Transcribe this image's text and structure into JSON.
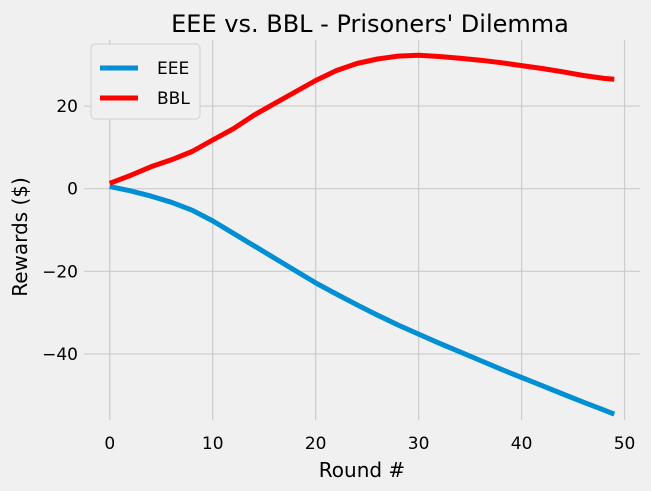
{
  "chart_data": {
    "type": "line",
    "title": "EEE vs. BBL - Prisoners' Dilemma",
    "xlabel": "Round #",
    "ylabel": "Rewards ($)",
    "xlim": [
      -2.5,
      51.5
    ],
    "ylim": [
      -56,
      36
    ],
    "xticks": [
      0,
      10,
      20,
      30,
      40,
      50
    ],
    "yticks": [
      -40,
      -20,
      0,
      20
    ],
    "grid": true,
    "legend_position": "upper-left",
    "series": [
      {
        "name": "EEE",
        "color": "#008fd5",
        "points": [
          [
            0,
            0.5
          ],
          [
            2,
            -0.5
          ],
          [
            4,
            -1.8
          ],
          [
            6,
            -3.3
          ],
          [
            8,
            -5.2
          ],
          [
            10,
            -7.8
          ],
          [
            12,
            -10.8
          ],
          [
            14,
            -13.8
          ],
          [
            16,
            -16.8
          ],
          [
            18,
            -19.8
          ],
          [
            20,
            -22.8
          ],
          [
            22,
            -25.5
          ],
          [
            24,
            -28.1
          ],
          [
            26,
            -30.6
          ],
          [
            28,
            -33
          ],
          [
            30,
            -35.2
          ],
          [
            32,
            -37.4
          ],
          [
            34,
            -39.5
          ],
          [
            36,
            -41.6
          ],
          [
            38,
            -43.7
          ],
          [
            40,
            -45.7
          ],
          [
            42,
            -47.7
          ],
          [
            44,
            -49.7
          ],
          [
            46,
            -51.7
          ],
          [
            48,
            -53.6
          ],
          [
            49,
            -54.6
          ]
        ]
      },
      {
        "name": "BBL",
        "color": "#ff0000",
        "points": [
          [
            0,
            1.3
          ],
          [
            2,
            3.2
          ],
          [
            4,
            5.3
          ],
          [
            6,
            7
          ],
          [
            8,
            9
          ],
          [
            10,
            11.8
          ],
          [
            12,
            14.5
          ],
          [
            14,
            17.8
          ],
          [
            16,
            20.6
          ],
          [
            18,
            23.4
          ],
          [
            20,
            26.2
          ],
          [
            22,
            28.6
          ],
          [
            24,
            30.3
          ],
          [
            26,
            31.4
          ],
          [
            28,
            32.1
          ],
          [
            30,
            32.3
          ],
          [
            32,
            32
          ],
          [
            34,
            31.6
          ],
          [
            36,
            31.1
          ],
          [
            38,
            30.5
          ],
          [
            40,
            29.8
          ],
          [
            42,
            29.1
          ],
          [
            44,
            28.3
          ],
          [
            46,
            27.4
          ],
          [
            48,
            26.7
          ],
          [
            49,
            26.5
          ]
        ]
      }
    ]
  }
}
